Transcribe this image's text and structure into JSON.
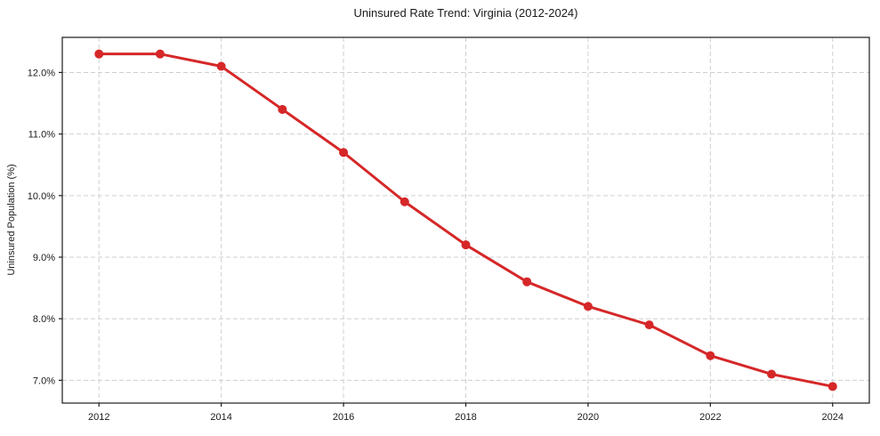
{
  "title": "Uninsured Rate Trend: Virginia (2012-2024)",
  "chart_data": {
    "type": "line",
    "title": "Uninsured Rate Trend: Virginia (2012-2024)",
    "xlabel": "",
    "ylabel": "Uninsured Population (%)",
    "x": [
      2012,
      2013,
      2014,
      2015,
      2016,
      2017,
      2018,
      2019,
      2020,
      2021,
      2022,
      2023,
      2024
    ],
    "series": [
      {
        "name": "Uninsured Rate",
        "values": [
          12.3,
          12.3,
          12.1,
          11.4,
          10.7,
          9.9,
          9.2,
          8.6,
          8.2,
          7.9,
          7.4,
          7.1,
          6.9
        ]
      }
    ],
    "xlim": [
      2011.4,
      2024.6
    ],
    "ylim": [
      6.63,
      12.57
    ],
    "x_ticks": [
      2012,
      2014,
      2016,
      2018,
      2020,
      2022,
      2024
    ],
    "x_tick_labels": [
      "2012",
      "2014",
      "2016",
      "2018",
      "2020",
      "2022",
      "2024"
    ],
    "y_ticks": [
      7.0,
      8.0,
      9.0,
      10.0,
      11.0,
      12.0
    ],
    "y_tick_labels": [
      "7.0%",
      "8.0%",
      "9.0%",
      "10.0%",
      "11.0%",
      "12.0%"
    ],
    "grid": true,
    "grid_style": "dashed",
    "legend_position": "none",
    "colors": {
      "line": "#d62728",
      "marker": "#d62728",
      "grid": "#cfcfcf",
      "spine": "#1a1a1a",
      "background": "#ffffff",
      "text": "#1a1a1a"
    }
  }
}
